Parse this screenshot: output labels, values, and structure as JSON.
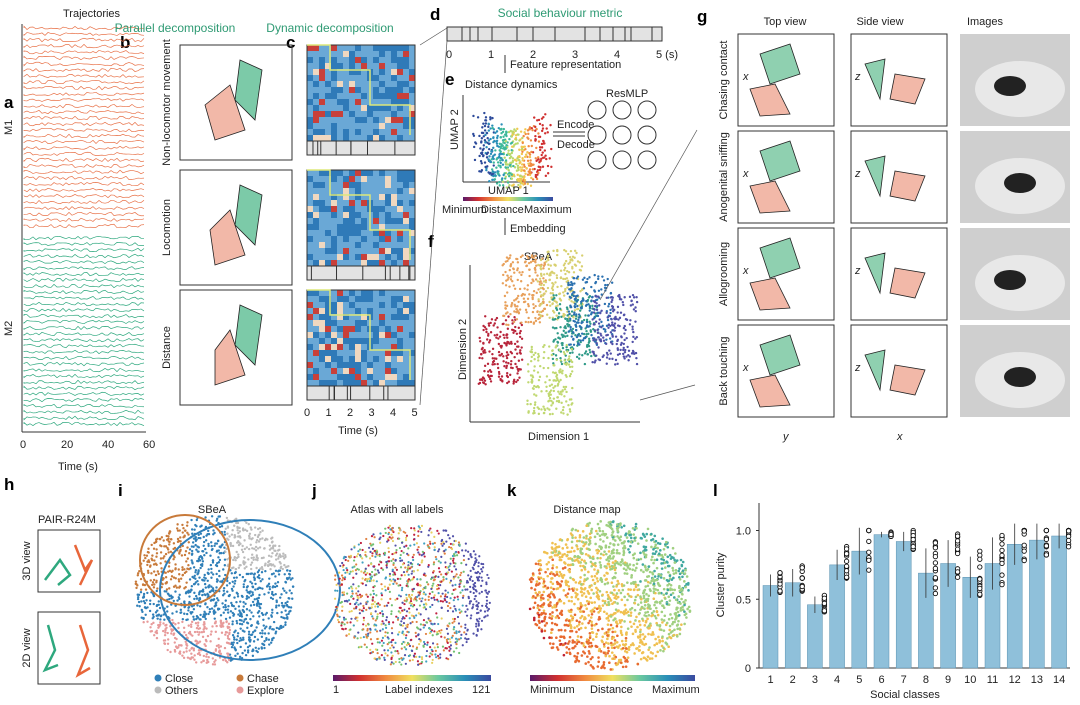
{
  "panels": {
    "a": {
      "letter": "a",
      "title": "Trajectories",
      "rows": [
        "M1",
        "M2"
      ],
      "xlabel": "Time (s)",
      "xticks": [
        "0",
        "20",
        "40",
        "60"
      ],
      "colors": {
        "M1": "#e8734a",
        "M2": "#2ea87e"
      }
    },
    "b": {
      "letter": "b",
      "title": "Parallel decomposition",
      "rows": [
        "Non-locomotor movement",
        "Locomotion",
        "Distance"
      ]
    },
    "c": {
      "letter": "c",
      "title": "Dynamic decomposition",
      "xlabel": "Time (s)",
      "xticks": [
        "0",
        "1",
        "2",
        "3",
        "4",
        "5"
      ]
    },
    "d": {
      "letter": "d",
      "title": "Social behaviour metric",
      "ticks": [
        "0",
        "1",
        "2",
        "3",
        "4",
        "5 (s)"
      ],
      "arrow_label": "Feature representation"
    },
    "e": {
      "letter": "e",
      "title": "Distance dynamics",
      "xlabel": "UMAP 1",
      "ylabel": "UMAP 2",
      "net": "ResMLP",
      "encode": "Encode",
      "decode": "Decode",
      "cbar": [
        "Minimum",
        "Distance",
        "Maximum"
      ],
      "arrow_label": "Embedding"
    },
    "f": {
      "letter": "f",
      "title": "SBeA",
      "xlabel": "Dimension 1",
      "ylabel": "Dimension 2"
    },
    "g": {
      "letter": "g",
      "cols": [
        "Top view",
        "Side view",
        "Images"
      ],
      "rows": [
        "Chasing contact",
        "Anogenital sniffing",
        "Allogrooming",
        "Back touching"
      ],
      "axes": {
        "top_y": "x",
        "side_y": "z",
        "top_x": "y",
        "side_x": "x"
      }
    },
    "h": {
      "letter": "h",
      "title": "PAIR-R24M",
      "rows": [
        "3D view",
        "2D view"
      ]
    },
    "i": {
      "letter": "i",
      "title": "SBeA",
      "legend": [
        {
          "label": "Close",
          "color": "#2f7fb8"
        },
        {
          "label": "Chase",
          "color": "#c87a3a"
        },
        {
          "label": "Others",
          "color": "#bbbbbb"
        },
        {
          "label": "Explore",
          "color": "#e79a9a"
        }
      ]
    },
    "j": {
      "letter": "j",
      "title": "Atlas with all labels",
      "cbar": [
        "1",
        "Label indexes",
        "121"
      ]
    },
    "k": {
      "letter": "k",
      "title": "Distance map",
      "cbar": [
        "Minimum",
        "Distance",
        "Maximum"
      ]
    },
    "l": {
      "letter": "l"
    }
  },
  "chart_data": {
    "type": "bar",
    "title": "",
    "xlabel": "Social classes",
    "ylabel": "Cluster purity",
    "categories": [
      "1",
      "2",
      "3",
      "4",
      "5",
      "6",
      "7",
      "8",
      "9",
      "10",
      "11",
      "12",
      "13",
      "14"
    ],
    "values": [
      0.6,
      0.62,
      0.46,
      0.75,
      0.85,
      0.97,
      0.92,
      0.69,
      0.76,
      0.66,
      0.76,
      0.9,
      0.93,
      0.96
    ],
    "errors": [
      0.08,
      0.1,
      0.06,
      0.11,
      0.17,
      0.02,
      0.07,
      0.18,
      0.17,
      0.15,
      0.19,
      0.15,
      0.14,
      0.09
    ],
    "yticks": [
      "0",
      "0.5",
      "1.0"
    ],
    "ylim": [
      0,
      1.2
    ],
    "bar_color": "#8fc0da",
    "grid": false
  }
}
